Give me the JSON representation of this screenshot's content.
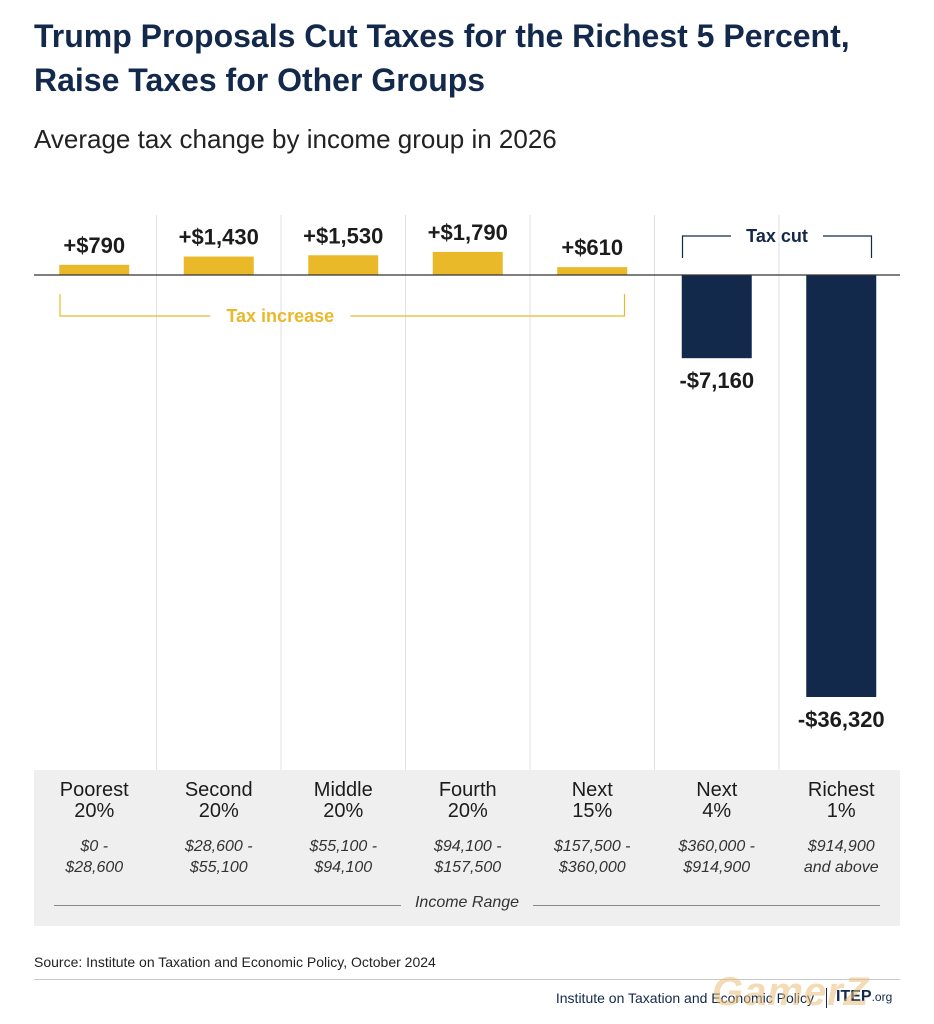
{
  "title": "Trump Proposals Cut Taxes for the Richest 5 Percent, Raise Taxes for Other Groups",
  "subtitle": "Average tax change by income group in 2026",
  "colors": {
    "increase": "#e9b92a",
    "cut": "#13294b",
    "title": "#13294b"
  },
  "brackets": {
    "increase_label": "Tax increase",
    "cut_label": "Tax cut"
  },
  "axis": {
    "range_label": "Income Range"
  },
  "source": "Source: Institute on Taxation and Economic Policy, October 2024",
  "footer": {
    "org": "Institute on Taxation and Economic Policy",
    "logo_main": "ITEP",
    "logo_suffix": ".org"
  },
  "watermark": "GamerZ",
  "chart_data": {
    "type": "bar",
    "title": "Trump Proposals Cut Taxes for the Richest 5 Percent, Raise Taxes for Other Groups",
    "subtitle": "Average tax change by income group in 2026",
    "categories": [
      "Poorest 20%",
      "Second 20%",
      "Middle 20%",
      "Fourth 20%",
      "Next 15%",
      "Next 4%",
      "Richest 1%"
    ],
    "values": [
      790,
      1430,
      1530,
      1790,
      610,
      -7160,
      -36320
    ],
    "value_labels": [
      "+$790",
      "+$1,430",
      "+$1,530",
      "+$1,790",
      "+$610",
      "-$7,160",
      "-$36,320"
    ],
    "group_names": [
      "Poorest\n20%",
      "Second\n20%",
      "Middle\n20%",
      "Fourth\n20%",
      "Next\n15%",
      "Next\n4%",
      "Richest\n1%"
    ],
    "income_ranges": [
      "$0 -\n$28,600",
      "$28,600 -\n$55,100",
      "$55,100 -\n$94,100",
      "$94,100 -\n$157,500",
      "$157,500 -\n$360,000",
      "$360,000 -\n$914,900",
      "$914,900\nand above"
    ],
    "xlabel": "Income Range",
    "ylabel": "",
    "ylim": [
      -36320,
      1790
    ],
    "grid": false,
    "legend": "none"
  }
}
